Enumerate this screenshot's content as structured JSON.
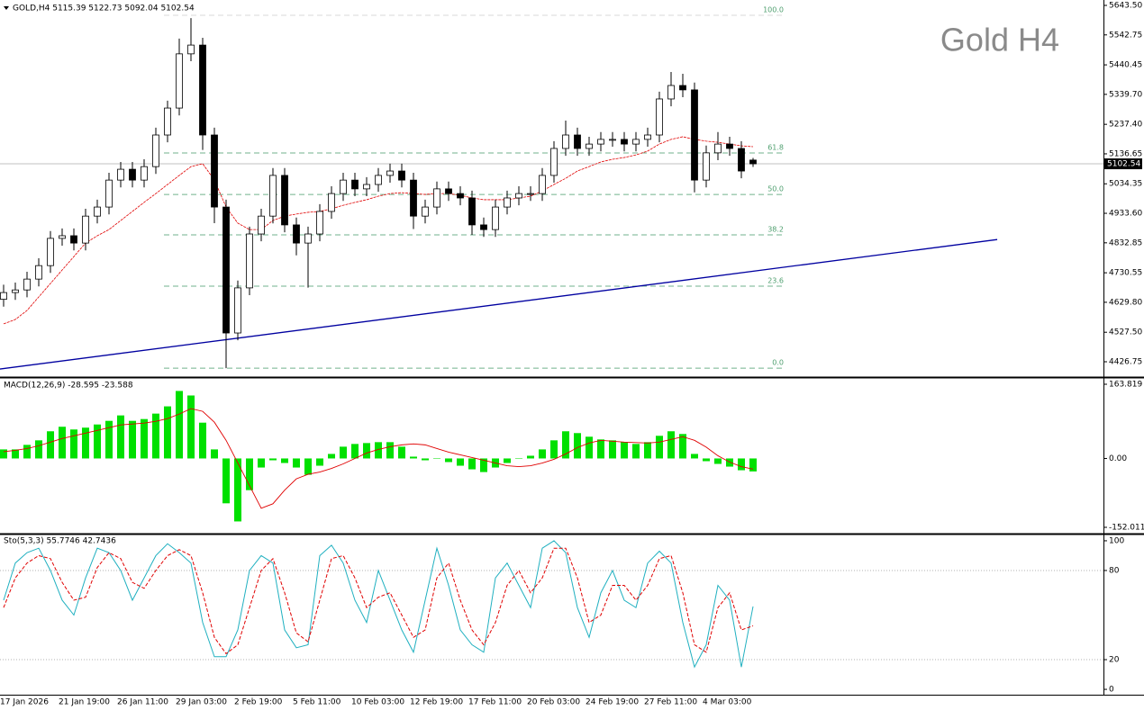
{
  "chart_data": [
    {
      "type": "candlestick",
      "title": "GOLD,H4 5115.39 5122.73 5092.04 5102.54",
      "watermark": "Gold H4",
      "open": [
        4640,
        4663,
        4672,
        4709,
        4755,
        4848,
        4857,
        4832,
        4924,
        4955,
        5047,
        5084,
        5047,
        5093,
        5201,
        5293,
        5478,
        5508,
        5201,
        4955,
        4525,
        4679,
        4863,
        4924,
        5063,
        4894,
        4832,
        4863,
        4940,
        5001,
        5047,
        5017,
        5032,
        5063,
        5078,
        5047,
        4924,
        4955,
        5017,
        5001,
        4986,
        4894,
        4878,
        4955,
        4986,
        5001,
        5001,
        5063,
        5155,
        5201,
        5155,
        5170,
        5186,
        5186,
        5170,
        5186,
        5201,
        5324,
        5370,
        5355,
        5047,
        5140,
        5170,
        5155,
        5115.39
      ],
      "high": [
        4690,
        4697,
        4734,
        4780,
        4873,
        4882,
        4882,
        4949,
        4980,
        5072,
        5109,
        5109,
        5118,
        5226,
        5318,
        5530,
        5600,
        5533,
        5226,
        4980,
        4704,
        4888,
        4949,
        5088,
        5088,
        4919,
        4888,
        4965,
        5026,
        5072,
        5072,
        5057,
        5088,
        5103,
        5103,
        5072,
        4980,
        5042,
        5042,
        5026,
        5011,
        4919,
        4980,
        5011,
        5026,
        5026,
        5088,
        5180,
        5250,
        5226,
        5195,
        5211,
        5211,
        5211,
        5211,
        5226,
        5349,
        5416,
        5410,
        5380,
        5165,
        5211,
        5195,
        5180,
        5122.73
      ],
      "low": [
        4615,
        4638,
        4647,
        4684,
        4730,
        4823,
        4807,
        4807,
        4899,
        4930,
        5022,
        5022,
        5022,
        5068,
        5176,
        5268,
        5453,
        5150,
        4900,
        4405,
        4500,
        4654,
        4838,
        4899,
        4869,
        4790,
        4680,
        4838,
        4915,
        4976,
        4992,
        4992,
        5007,
        5038,
        5022,
        4880,
        4899,
        4930,
        4976,
        4961,
        4860,
        4853,
        4853,
        4930,
        4961,
        4976,
        4976,
        5038,
        5130,
        5130,
        5130,
        5145,
        5161,
        5145,
        5145,
        5161,
        5176,
        5299,
        5330,
        5005,
        5022,
        5115,
        5130,
        5053,
        5092.04
      ],
      "close": [
        4663,
        4672,
        4709,
        4755,
        4848,
        4857,
        4832,
        4924,
        4955,
        5047,
        5084,
        5047,
        5093,
        5201,
        5293,
        5478,
        5508,
        5201,
        4955,
        4525,
        4679,
        4863,
        4924,
        5063,
        4894,
        4832,
        4863,
        4940,
        5001,
        5047,
        5017,
        5032,
        5063,
        5078,
        5047,
        4924,
        4955,
        5017,
        5001,
        4986,
        4894,
        4878,
        4955,
        4986,
        5001,
        5001,
        5063,
        5155,
        5201,
        5155,
        5170,
        5186,
        5186,
        5170,
        5186,
        5201,
        5324,
        5370,
        5355,
        5047,
        5140,
        5170,
        5155,
        5078,
        5102.54
      ],
      "ma": {
        "color": "#e00000",
        "values": [
          4556,
          4571,
          4602,
          4648,
          4694,
          4740,
          4786,
          4832,
          4857,
          4878,
          4909,
          4940,
          4971,
          5001,
          5032,
          5063,
          5093,
          5103,
          5047,
          4955,
          4900,
          4878,
          4878,
          4909,
          4924,
          4931,
          4937,
          4940,
          4949,
          4961,
          4971,
          4980,
          4992,
          5001,
          5004,
          5001,
          4998,
          5001,
          5001,
          4995,
          4986,
          4980,
          4980,
          4980,
          4986,
          4992,
          5010,
          5032,
          5053,
          5078,
          5093,
          5109,
          5118,
          5124,
          5133,
          5146,
          5170,
          5186,
          5195,
          5186,
          5180,
          5176,
          5170,
          5164,
          5161
        ]
      },
      "trendline": {
        "color": "#0000a0",
        "x": [
          -0.31,
          84.85
        ],
        "y": [
          4402,
          4844
        ]
      },
      "fib_levels": [
        {
          "label": "100.0",
          "price": 5609.7
        },
        {
          "label": "61.8",
          "price": 5139.6
        },
        {
          "label": "50.0",
          "price": 4998
        },
        {
          "label": "38.2",
          "price": 4860
        },
        {
          "label": "23.6",
          "price": 4685
        },
        {
          "label": "0.0",
          "price": 4405
        }
      ],
      "fib_color": "#4f9f6f",
      "current_price": 5102.54,
      "ylim": [
        4377.6,
        5661.9
      ],
      "yticks": [
        {
          "value": 5643.5,
          "label": "5643.50"
        },
        5542.75,
        5440.45,
        {
          "value": 5339.7,
          "label": "5339.70"
        },
        {
          "value": 5237.4,
          "label": "5237.40"
        },
        5136.65,
        5034.35,
        {
          "value": 4933.6,
          "label": "4933.60"
        },
        4832.85,
        4730.55,
        {
          "value": 4629.8,
          "label": "4629.80"
        },
        {
          "value": 4527.5,
          "label": "4527.50"
        },
        4426.75
      ]
    },
    {
      "type": "macd",
      "title": "MACD(12,26,9) -28.595 -23.588",
      "series": [
        {
          "color": "#00e000",
          "values": [
            20,
            20,
            30,
            40,
            60,
            70,
            64,
            68,
            75,
            83,
            95,
            83,
            87,
            99,
            115,
            149,
            139,
            79,
            20,
            -99,
            -139,
            -70,
            -20,
            -4,
            -10,
            -20,
            -36,
            -16,
            10,
            26,
            32,
            34,
            36,
            36,
            26,
            4,
            -4,
            0,
            -8,
            -16,
            -24,
            -30,
            -20,
            -10,
            0,
            6,
            20,
            40,
            60,
            56,
            48,
            42,
            40,
            36,
            32,
            36,
            50,
            60,
            54,
            10,
            -6,
            -12,
            -18,
            -26,
            -28.595
          ]
        },
        {
          "color": "#e00000",
          "values": [
            15,
            18,
            22,
            28,
            36,
            44,
            50,
            56,
            62,
            68,
            74,
            76,
            78,
            82,
            88,
            98,
            110,
            104,
            80,
            40,
            -10,
            -60,
            -110,
            -100,
            -70,
            -45,
            -35,
            -30,
            -22,
            -12,
            0,
            12,
            20,
            26,
            30,
            32,
            30,
            22,
            14,
            8,
            2,
            -4,
            -10,
            -16,
            -18,
            -16,
            -10,
            -2,
            10,
            24,
            34,
            40,
            38,
            36,
            35,
            34,
            36,
            42,
            48,
            40,
            25,
            6,
            -8,
            -18,
            -23.588
          ]
        }
      ],
      "ylim": [
        -163.93,
        175.74
      ],
      "yticks": [
        -152.011,
        {
          "value": 0,
          "label": "0.00"
        },
        163.819
      ]
    },
    {
      "type": "stochastic",
      "title": "Sto(5,3,3) 55.7746 42.7436",
      "categories": [
        "17 Jan 2026",
        null,
        null,
        null,
        null,
        "21 Jan 19:00",
        null,
        null,
        null,
        null,
        "26 Jan 11:00",
        null,
        null,
        null,
        null,
        "29 Jan 03:00",
        null,
        null,
        null,
        null,
        "2 Feb 19:00",
        null,
        null,
        null,
        null,
        "5 Feb 11:00",
        null,
        null,
        null,
        null,
        "10 Feb 03:00",
        null,
        null,
        null,
        null,
        "12 Feb 19:00",
        null,
        null,
        null,
        null,
        "17 Feb 11:00",
        null,
        null,
        null,
        null,
        "20 Feb 03:00",
        null,
        null,
        null,
        null,
        "24 Feb 19:00",
        null,
        null,
        null,
        null,
        "27 Feb 11:00",
        null,
        null,
        null,
        null,
        "4 Mar 03:00",
        null,
        null,
        null,
        null
      ],
      "series": [
        {
          "color": "#20b0c0",
          "values": [
            60,
            85,
            92,
            95,
            80,
            60,
            50,
            75,
            95,
            92,
            80,
            60,
            75,
            90,
            98,
            92,
            85,
            45,
            22,
            22,
            40,
            80,
            90,
            85,
            40,
            28,
            30,
            90,
            97,
            85,
            60,
            45,
            80,
            60,
            40,
            25,
            60,
            95,
            70,
            40,
            30,
            25,
            75,
            85,
            70,
            55,
            95,
            100,
            92,
            55,
            35,
            65,
            80,
            60,
            55,
            85,
            93,
            85,
            45,
            15,
            30,
            70,
            60,
            15,
            55.7746
          ]
        },
        {
          "color": "#e00000",
          "values": [
            55,
            75,
            85,
            90,
            88,
            72,
            60,
            62,
            82,
            92,
            88,
            72,
            68,
            80,
            90,
            94,
            90,
            65,
            35,
            24,
            30,
            55,
            80,
            88,
            65,
            38,
            32,
            60,
            88,
            90,
            75,
            55,
            62,
            65,
            50,
            35,
            40,
            75,
            85,
            60,
            40,
            30,
            45,
            70,
            80,
            65,
            75,
            95,
            95,
            75,
            45,
            50,
            70,
            70,
            60,
            70,
            88,
            90,
            65,
            30,
            25,
            55,
            65,
            40,
            42.7436
          ]
        }
      ],
      "levels": [
        80,
        20
      ],
      "ylim": [
        -3.6,
        103.6
      ],
      "yticks": [
        100,
        80,
        20,
        0
      ]
    }
  ]
}
